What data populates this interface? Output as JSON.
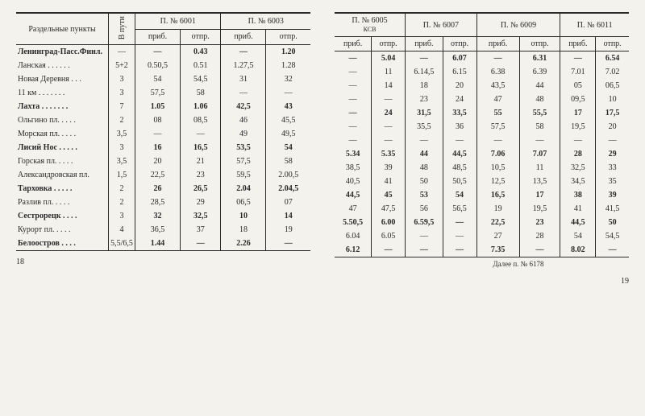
{
  "left": {
    "header": {
      "stations_col": "Раздельные\nпункты",
      "travel_col": "В пути",
      "trains": [
        {
          "title": "П. № 6001",
          "arr": "приб.",
          "dep": "отпр."
        },
        {
          "title": "П. № 6003",
          "arr": "приб.",
          "dep": "отпр."
        }
      ]
    },
    "rows": [
      {
        "station": "Ленинград-Пасс.Финл.",
        "bold": true,
        "vp": "—",
        "c": [
          "—",
          "0.43",
          "—",
          "1.20"
        ]
      },
      {
        "station": "Ланская . . . . . .",
        "bold": false,
        "vp": "5+2",
        "c": [
          "0.50,5",
          "0.51",
          "1.27,5",
          "1.28"
        ]
      },
      {
        "station": "Новая Деревня . . .",
        "bold": false,
        "vp": "3",
        "c": [
          "54",
          "54,5",
          "31",
          "32"
        ]
      },
      {
        "station": "11 км . . . . . . .",
        "bold": false,
        "vp": "3",
        "c": [
          "57,5",
          "58",
          "—",
          "—"
        ]
      },
      {
        "station": "Лахта . . . . . . .",
        "bold": true,
        "vp": "7",
        "c": [
          "1.05",
          "1.06",
          "42,5",
          "43"
        ]
      },
      {
        "station": "Ольгино пл. . . . .",
        "bold": false,
        "vp": "2",
        "c": [
          "08",
          "08,5",
          "46",
          "45,5"
        ]
      },
      {
        "station": "Морская пл. . . . .",
        "bold": false,
        "vp": "3,5",
        "c": [
          "—",
          "—",
          "49",
          "49,5"
        ]
      },
      {
        "station": "Лисий Нос . . . . .",
        "bold": true,
        "vp": "3",
        "c": [
          "16",
          "16,5",
          "53,5",
          "54"
        ]
      },
      {
        "station": "Горская пл. . . . .",
        "bold": false,
        "vp": "3,5",
        "c": [
          "20",
          "21",
          "57,5",
          "58"
        ]
      },
      {
        "station": "Александровская пл.",
        "bold": false,
        "vp": "1,5",
        "c": [
          "22,5",
          "23",
          "59,5",
          "2.00,5"
        ]
      },
      {
        "station": "Тарховка . . . . .",
        "bold": true,
        "vp": "2",
        "c": [
          "26",
          "26,5",
          "2.04",
          "2.04,5"
        ]
      },
      {
        "station": "Разлив пл. . . . .",
        "bold": false,
        "vp": "2",
        "c": [
          "28,5",
          "29",
          "06,5",
          "07"
        ]
      },
      {
        "station": "Сестрорецк . . . .",
        "bold": true,
        "vp": "3",
        "c": [
          "32",
          "32,5",
          "10",
          "14"
        ]
      },
      {
        "station": "Курорт пл. . . . .",
        "bold": false,
        "vp": "4",
        "c": [
          "36,5",
          "37",
          "18",
          "19"
        ]
      },
      {
        "station": "Белоостров . . . .",
        "bold": true,
        "vp": "5,5/6,5",
        "c": [
          "1.44",
          "—",
          "2.26",
          "—"
        ]
      }
    ],
    "pagenum": "18"
  },
  "right": {
    "header": {
      "trains": [
        {
          "title": "П. № 6005",
          "sub": "КСВ",
          "arr": "приб.",
          "dep": "отпр."
        },
        {
          "title": "П. № 6007",
          "sub": "",
          "arr": "приб.",
          "dep": "отпр."
        },
        {
          "title": "П. № 6009",
          "sub": "",
          "arr": "приб.",
          "dep": "отпр."
        },
        {
          "title": "П. № 6011",
          "sub": "",
          "arr": "приб.",
          "dep": "отпр."
        }
      ]
    },
    "rows": [
      {
        "c": [
          "—",
          "5.04",
          "—",
          "6.07",
          "—",
          "6.31",
          "—",
          "6.54"
        ],
        "bold": true
      },
      {
        "c": [
          "—",
          "11",
          "6.14,5",
          "6.15",
          "6.38",
          "6.39",
          "7.01",
          "7.02"
        ],
        "bold": false
      },
      {
        "c": [
          "—",
          "14",
          "18",
          "20",
          "43,5",
          "44",
          "05",
          "06,5"
        ],
        "bold": false
      },
      {
        "c": [
          "—",
          "—",
          "23",
          "24",
          "47",
          "48",
          "09,5",
          "10"
        ],
        "bold": false
      },
      {
        "c": [
          "—",
          "24",
          "31,5",
          "33,5",
          "55",
          "55,5",
          "17",
          "17,5"
        ],
        "bold": true
      },
      {
        "c": [
          "—",
          "—",
          "35,5",
          "36",
          "57,5",
          "58",
          "19,5",
          "20"
        ],
        "bold": false
      },
      {
        "c": [
          "—",
          "—",
          "—",
          "—",
          "—",
          "—",
          "—",
          "—"
        ],
        "bold": false
      },
      {
        "c": [
          "5.34",
          "5.35",
          "44",
          "44,5",
          "7.06",
          "7.07",
          "28",
          "29"
        ],
        "bold": true
      },
      {
        "c": [
          "38,5",
          "39",
          "48",
          "48,5",
          "10,5",
          "11",
          "32,5",
          "33"
        ],
        "bold": false
      },
      {
        "c": [
          "40,5",
          "41",
          "50",
          "50,5",
          "12,5",
          "13,5",
          "34,5",
          "35"
        ],
        "bold": false
      },
      {
        "c": [
          "44,5",
          "45",
          "53",
          "54",
          "16,5",
          "17",
          "38",
          "39"
        ],
        "bold": true
      },
      {
        "c": [
          "47",
          "47,5",
          "56",
          "56,5",
          "19",
          "19,5",
          "41",
          "41,5"
        ],
        "bold": false
      },
      {
        "c": [
          "5.50,5",
          "6.00",
          "6.59,5",
          "—",
          "22,5",
          "23",
          "44,5",
          "50"
        ],
        "bold": true
      },
      {
        "c": [
          "6.04",
          "6.05",
          "—",
          "—",
          "27",
          "28",
          "54",
          "54,5"
        ],
        "bold": false
      },
      {
        "c": [
          "6.12",
          "—",
          "—",
          "—",
          "7.35",
          "—",
          "8.02",
          "—"
        ],
        "bold": true
      }
    ],
    "footnote": "Далее\nп. № 6178",
    "pagenum": "19"
  }
}
